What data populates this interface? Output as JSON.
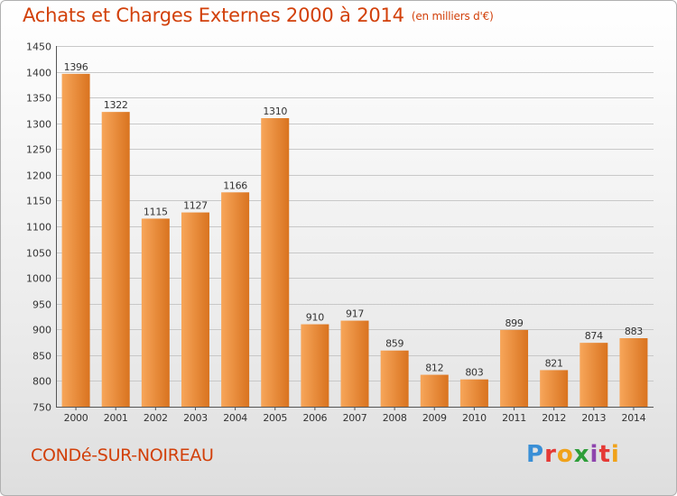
{
  "header": {
    "title": "Achats et Charges Externes 2000 à 2014",
    "subtitle": "(en milliers d'€)"
  },
  "footer": {
    "place": "CONDé-SUR-NOIREAU",
    "brand": "Proxiti",
    "brand_colors": [
      "#3a8fd6",
      "#e53935",
      "#f0a21a",
      "#2e9e3a",
      "#8e44ad",
      "#e53935",
      "#f0a21a"
    ]
  },
  "colors": {
    "bar_light": "#f7a65a",
    "bar_dark": "#d9731f",
    "text": "#d2400a",
    "grid": "#c8c8c8"
  },
  "chart_data": {
    "type": "bar",
    "categories": [
      "2000",
      "2001",
      "2002",
      "2003",
      "2004",
      "2005",
      "2006",
      "2007",
      "2008",
      "2009",
      "2010",
      "2011",
      "2012",
      "2013",
      "2014"
    ],
    "values": [
      1396,
      1322,
      1115,
      1127,
      1166,
      1310,
      910,
      917,
      859,
      812,
      803,
      899,
      821,
      874,
      883
    ],
    "ylim": [
      750,
      1450
    ],
    "yticks": [
      750,
      800,
      850,
      900,
      950,
      1000,
      1050,
      1100,
      1150,
      1200,
      1250,
      1300,
      1350,
      1400,
      1450
    ],
    "grid": true,
    "data_labels": true
  }
}
